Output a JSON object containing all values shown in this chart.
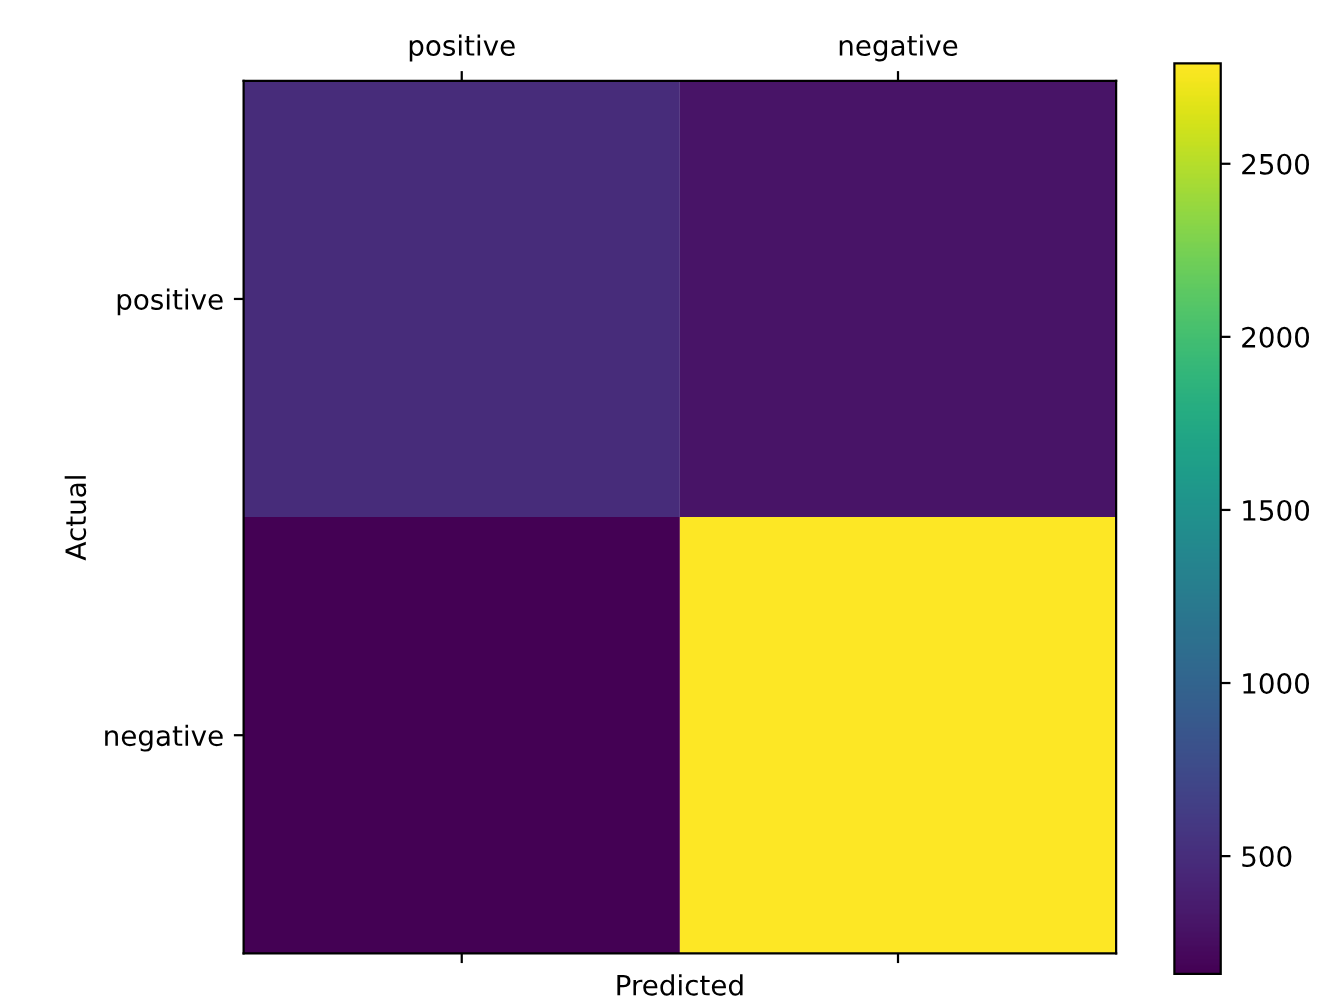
{
  "chart_data": {
    "type": "heatmap",
    "xlabel": "Predicted",
    "ylabel": "Actual",
    "categories": [
      "positive",
      "negative"
    ],
    "y_categories": [
      "positive",
      "negative"
    ],
    "cells": [
      [
        480,
        300
      ],
      [
        160,
        2790
      ]
    ],
    "clim": [
      160,
      2790
    ],
    "cticks": [
      500,
      1000,
      1500,
      2000,
      2500
    ],
    "grid": false
  }
}
